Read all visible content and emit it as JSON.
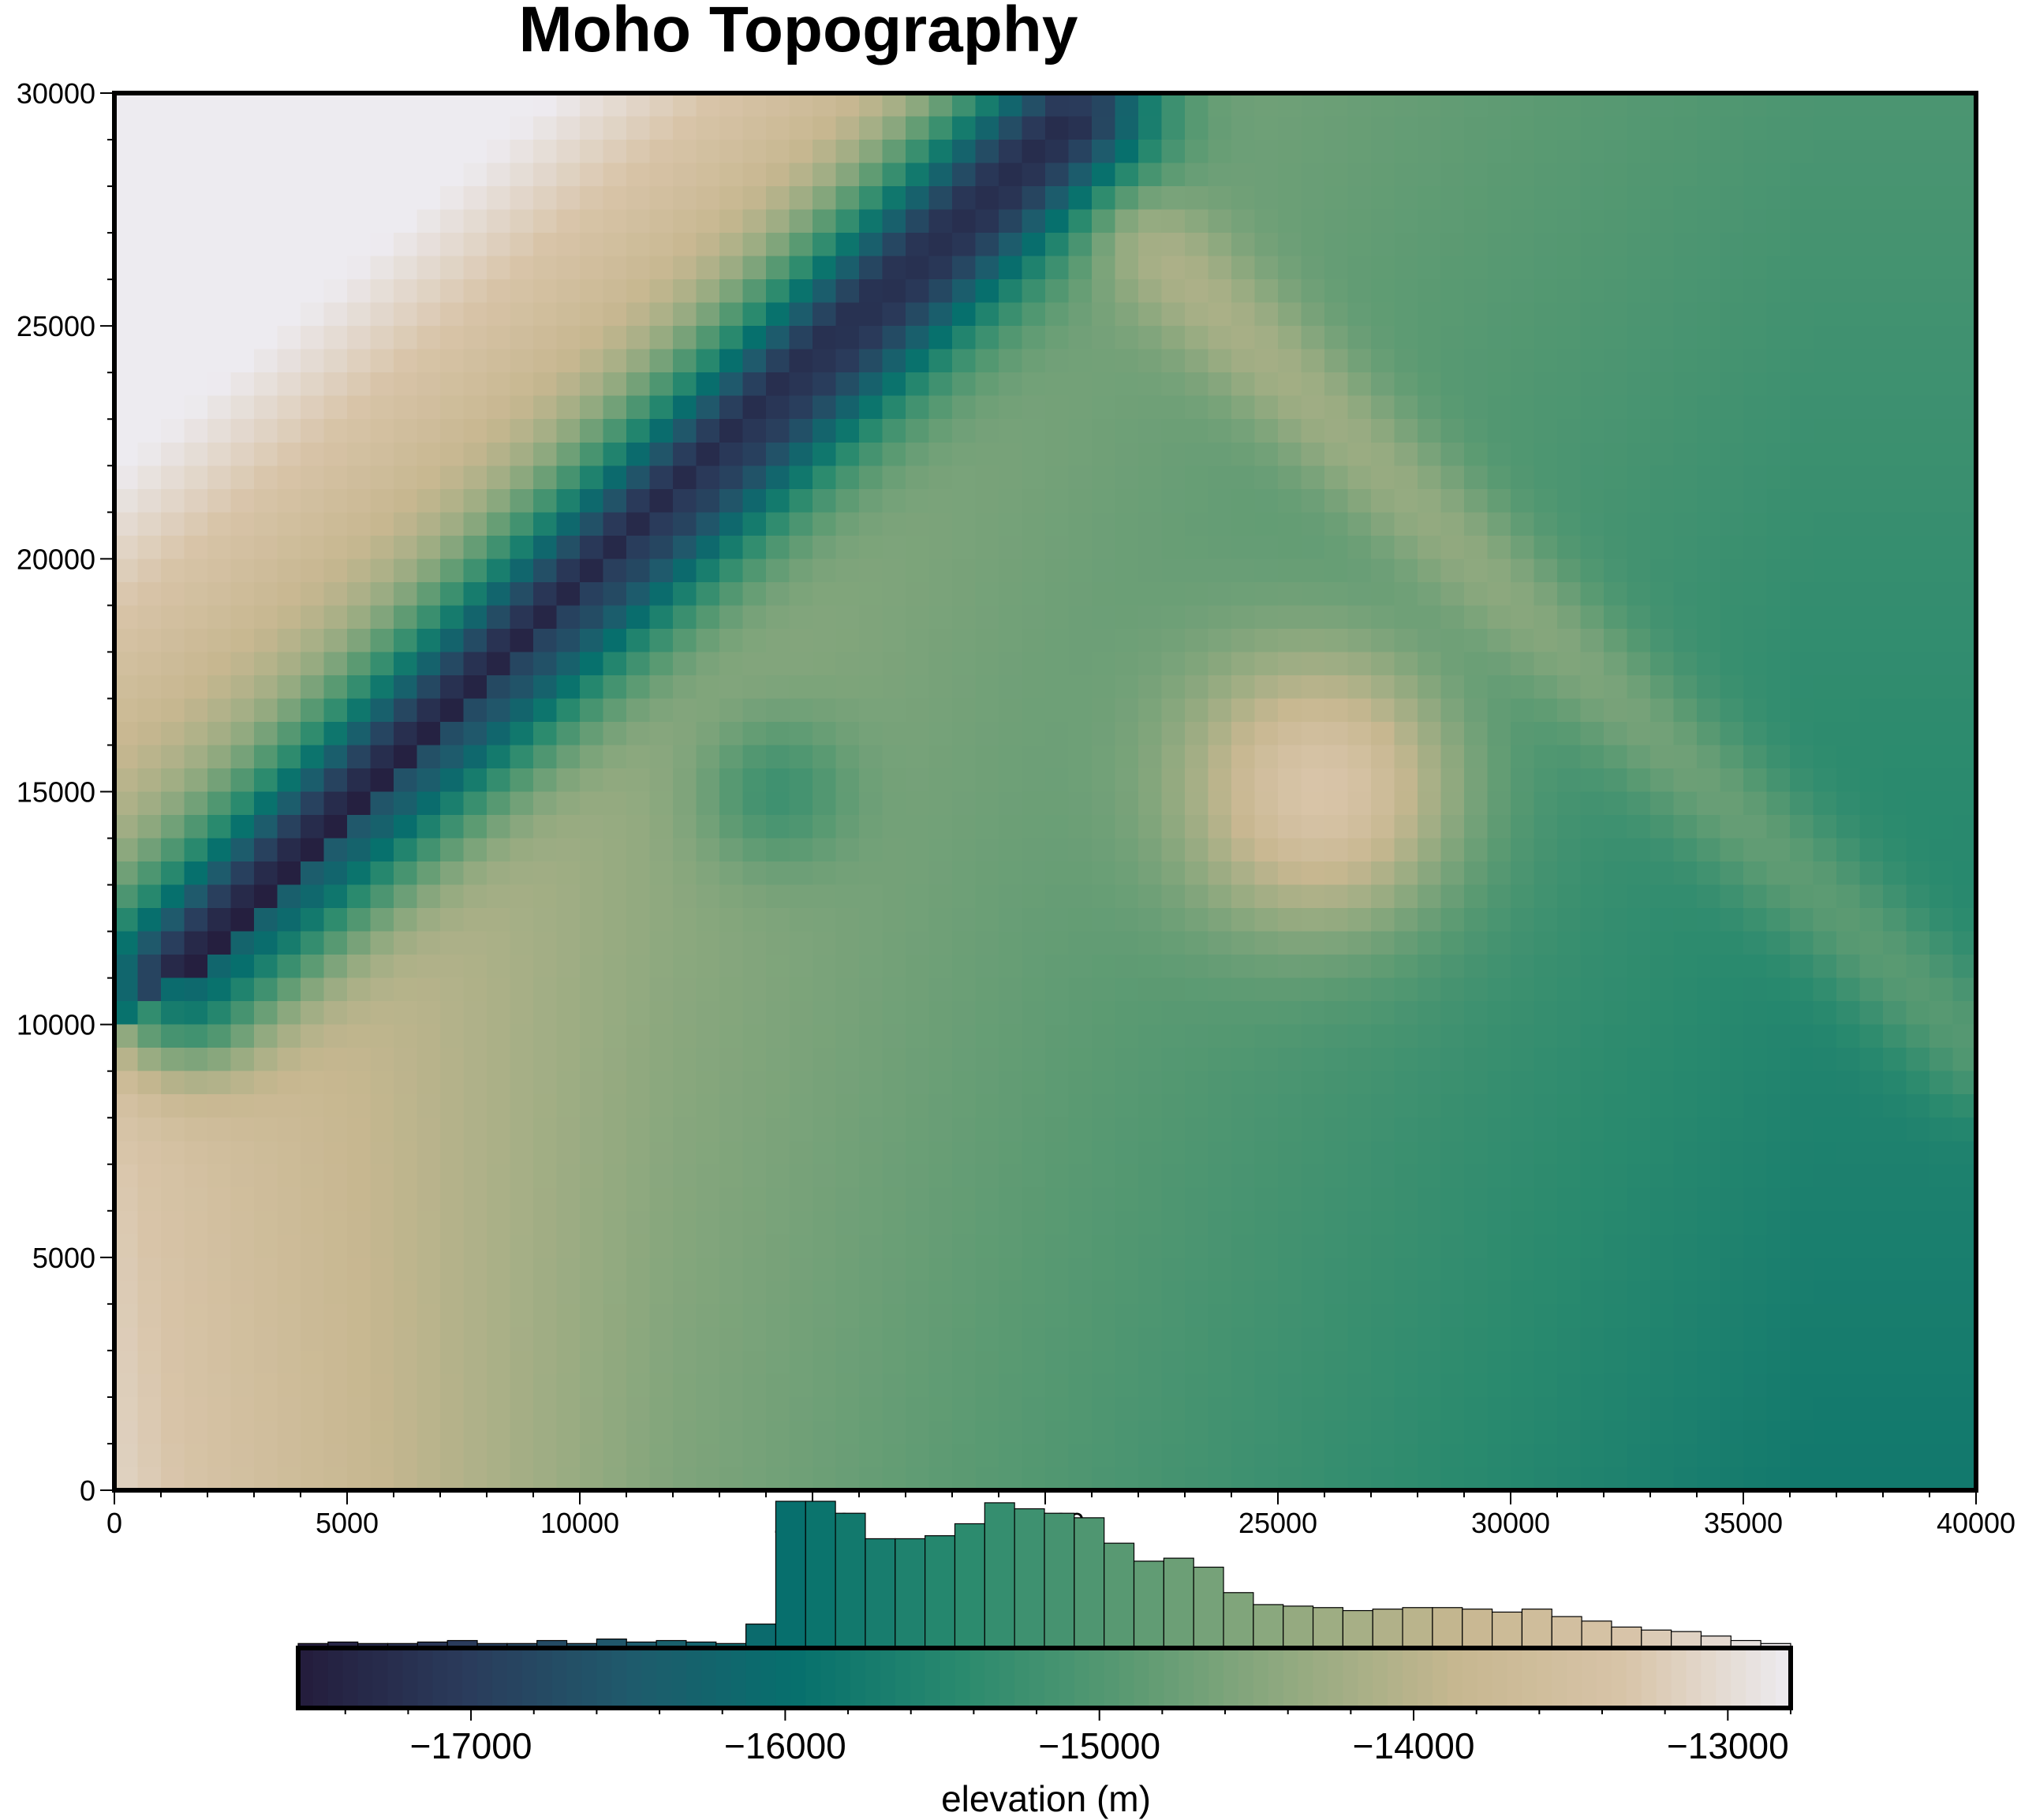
{
  "chart_data": {
    "type": "heatmap",
    "title": "Moho Topography",
    "xlim": [
      0,
      40000
    ],
    "ylim": [
      0,
      30000
    ],
    "x_ticks": [
      0,
      5000,
      10000,
      15000,
      20000,
      25000,
      30000,
      35000,
      40000
    ],
    "y_ticks": [
      0,
      5000,
      10000,
      15000,
      20000,
      25000,
      30000
    ],
    "x_tick_labels": [
      "0",
      "5000",
      "10000",
      "15000",
      "20000",
      "25000",
      "30000",
      "35000",
      "40000"
    ],
    "y_tick_labels": [
      "0",
      "5000",
      "10000",
      "15000",
      "20000",
      "25000",
      "30000"
    ],
    "grid": false,
    "colormap": [
      "#241c3c",
      "#2a3b5b",
      "#1f5a6c",
      "#06706d",
      "#2a8a6e",
      "#5a9a72",
      "#93aa80",
      "#c7b790",
      "#d8c4a8",
      "#edebf0"
    ],
    "features": [
      {
        "kind": "background",
        "description_values": "increasing from about -15800 m (south-east) to about -12800 m (north-west corner)"
      },
      {
        "kind": "trough",
        "from": [
          1500,
          11000
        ],
        "to": [
          20500,
          29500
        ],
        "min_value": -17500
      },
      {
        "kind": "dome",
        "center": [
          26000,
          15000
        ],
        "peak_value": -13800
      },
      {
        "kind": "depression",
        "center": [
          14200,
          15000
        ],
        "min_value": -15900
      },
      {
        "kind": "ridge",
        "from": [
          22000,
          27000
        ],
        "to": [
          40000,
          9500
        ],
        "value": -14600
      }
    ],
    "colorbar": {
      "label": "elevation (m)",
      "range": [
        -17550,
        -12800
      ],
      "ticks": [
        -17000,
        -16000,
        -15000,
        -14000,
        -13000
      ],
      "tick_labels": [
        "−17000",
        "−16000",
        "−15000",
        "−14000",
        "−13000"
      ],
      "minor_tick_step": 200,
      "position": "bottom"
    },
    "histogram": {
      "bin_start": -17550,
      "bin_width": 95,
      "counts": [
        3,
        4,
        3,
        3,
        4,
        5,
        3,
        3,
        5,
        3,
        6,
        4,
        5,
        4,
        3,
        16,
        98,
        98,
        90,
        73,
        73,
        75,
        83,
        97,
        93,
        90,
        87,
        70,
        58,
        60,
        54,
        37,
        29,
        28,
        27,
        25,
        26,
        27,
        27,
        26,
        24,
        26,
        21,
        18,
        14,
        12,
        11,
        8,
        5,
        3
      ]
    }
  }
}
